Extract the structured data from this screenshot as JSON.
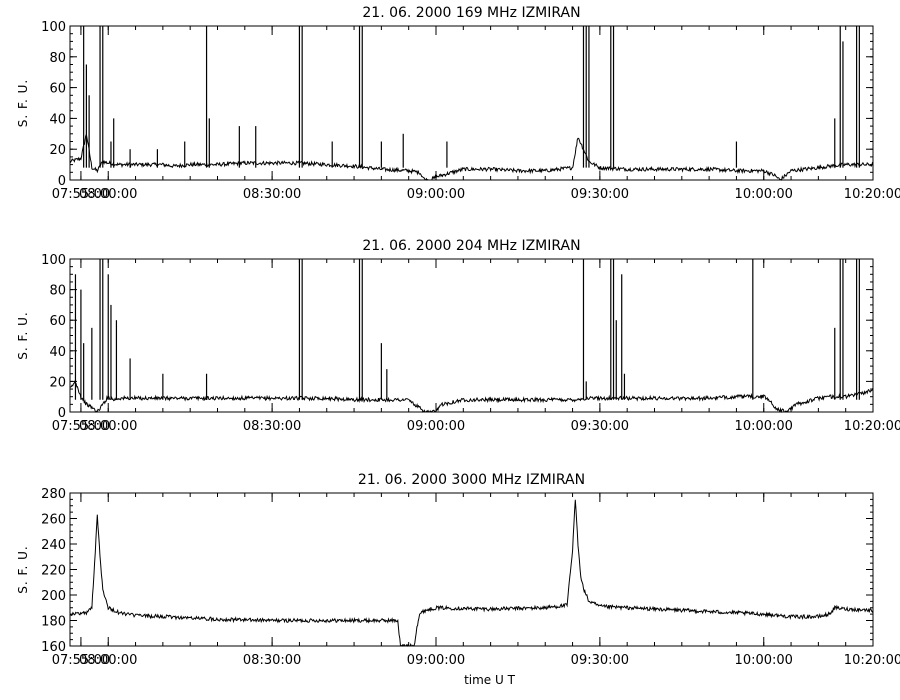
{
  "chart_data": [
    {
      "type": "line",
      "title": "21.  06.  2000    169  MHz     IZMIRAN",
      "ylabel": "S.  F.  U.",
      "xlabel": "",
      "xlim": [
        "07:53:00",
        "10:20:00"
      ],
      "ylim": [
        0,
        100
      ],
      "yticks": [
        0,
        20,
        40,
        60,
        80,
        100
      ],
      "xticks": [
        {
          "t": "07:55:00",
          "label": "07:55:00"
        },
        {
          "t": "08:00:00",
          "label": "08:00:00"
        },
        {
          "t": "08:30:00",
          "label": "08:30:00"
        },
        {
          "t": "09:00:00",
          "label": "09:00:00"
        },
        {
          "t": "09:30:00",
          "label": "09:30:00"
        },
        {
          "t": "10:00:00",
          "label": "10:00:00"
        },
        {
          "t": "10:20:00",
          "label": "10:20:00"
        }
      ],
      "grid": false,
      "series": [
        {
          "color": "#000000",
          "x": [
            "07:53:00",
            "07:55:00",
            "07:56:00",
            "07:57:00",
            "07:58:00",
            "07:59:00",
            "08:00:00",
            "08:02:00",
            "08:05:00",
            "08:10:00",
            "08:12:00",
            "08:15:00",
            "08:20:00",
            "08:25:00",
            "08:30:00",
            "08:35:00",
            "08:40:00",
            "08:45:00",
            "08:50:00",
            "08:55:00",
            "08:57:00",
            "08:58:00",
            "08:59:00",
            "09:00:00",
            "09:05:00",
            "09:10:00",
            "09:15:00",
            "09:20:00",
            "09:25:00",
            "09:26:00",
            "09:28:00",
            "09:30:00",
            "09:35:00",
            "09:40:00",
            "09:45:00",
            "09:50:00",
            "09:55:00",
            "10:00:00",
            "10:02:00",
            "10:03:00",
            "10:05:00",
            "10:10:00",
            "10:12:00",
            "10:15:00",
            "10:20:00"
          ],
          "y": [
            12,
            14,
            30,
            8,
            6,
            12,
            11,
            10,
            10,
            10,
            9,
            10,
            10,
            11,
            11,
            11,
            10,
            9,
            7,
            6,
            5,
            0,
            0,
            2,
            7,
            7,
            6,
            6,
            8,
            28,
            12,
            8,
            7,
            7,
            7,
            7,
            6,
            6,
            3,
            0,
            6,
            8,
            9,
            10,
            10
          ]
        }
      ],
      "spikes": [
        {
          "t": "07:55:30",
          "y": 100
        },
        {
          "t": "07:56:00",
          "y": 75
        },
        {
          "t": "07:56:30",
          "y": 55
        },
        {
          "t": "07:58:30",
          "y": 100
        },
        {
          "t": "07:59:00",
          "y": 100
        },
        {
          "t": "08:00:30",
          "y": 25
        },
        {
          "t": "08:01:00",
          "y": 40
        },
        {
          "t": "08:04:00",
          "y": 20
        },
        {
          "t": "08:09:00",
          "y": 20
        },
        {
          "t": "08:14:00",
          "y": 25
        },
        {
          "t": "08:18:00",
          "y": 100
        },
        {
          "t": "08:18:30",
          "y": 40
        },
        {
          "t": "08:24:00",
          "y": 35
        },
        {
          "t": "08:27:00",
          "y": 35
        },
        {
          "t": "08:35:00",
          "y": 100
        },
        {
          "t": "08:35:30",
          "y": 100
        },
        {
          "t": "08:41:00",
          "y": 25
        },
        {
          "t": "08:46:00",
          "y": 100
        },
        {
          "t": "08:46:30",
          "y": 100
        },
        {
          "t": "08:50:00",
          "y": 25
        },
        {
          "t": "08:54:00",
          "y": 30
        },
        {
          "t": "09:02:00",
          "y": 25
        },
        {
          "t": "09:27:00",
          "y": 100
        },
        {
          "t": "09:27:30",
          "y": 100
        },
        {
          "t": "09:28:00",
          "y": 100
        },
        {
          "t": "09:32:00",
          "y": 100
        },
        {
          "t": "09:32:30",
          "y": 100
        },
        {
          "t": "09:55:00",
          "y": 25
        },
        {
          "t": "10:13:00",
          "y": 40
        },
        {
          "t": "10:14:00",
          "y": 100
        },
        {
          "t": "10:14:30",
          "y": 90
        },
        {
          "t": "10:17:00",
          "y": 100
        },
        {
          "t": "10:17:30",
          "y": 100
        }
      ]
    },
    {
      "type": "line",
      "title": "21.  06.  2000    204  MHz     IZMIRAN",
      "ylabel": "S.  F.  U.",
      "xlabel": "",
      "xlim": [
        "07:53:00",
        "10:20:00"
      ],
      "ylim": [
        0,
        100
      ],
      "yticks": [
        0,
        20,
        40,
        60,
        80,
        100
      ],
      "xticks": [
        {
          "t": "07:55:00",
          "label": "07:55:00"
        },
        {
          "t": "08:00:00",
          "label": "08:00:00"
        },
        {
          "t": "08:30:00",
          "label": "08:30:00"
        },
        {
          "t": "09:00:00",
          "label": "09:00:00"
        },
        {
          "t": "09:30:00",
          "label": "09:30:00"
        },
        {
          "t": "10:00:00",
          "label": "10:00:00"
        },
        {
          "t": "10:20:00",
          "label": "10:20:00"
        }
      ],
      "grid": false,
      "series": [
        {
          "color": "#000000",
          "x": [
            "07:53:00",
            "07:54:00",
            "07:55:00",
            "07:56:00",
            "07:57:00",
            "07:58:00",
            "07:59:00",
            "08:00:00",
            "08:01:00",
            "08:02:00",
            "08:05:00",
            "08:10:00",
            "08:15:00",
            "08:20:00",
            "08:25:00",
            "08:30:00",
            "08:35:00",
            "08:40:00",
            "08:45:00",
            "08:50:00",
            "08:55:00",
            "08:56:00",
            "08:58:00",
            "09:00:00",
            "09:01:00",
            "09:05:00",
            "09:10:00",
            "09:15:00",
            "09:20:00",
            "09:25:00",
            "09:28:00",
            "09:30:00",
            "09:35:00",
            "09:40:00",
            "09:45:00",
            "09:50:00",
            "09:55:00",
            "10:00:00",
            "10:01:00",
            "10:02:00",
            "10:04:00",
            "10:06:00",
            "10:10:00",
            "10:12:00",
            "10:15:00",
            "10:20:00"
          ],
          "y": [
            15,
            20,
            10,
            5,
            3,
            0,
            5,
            10,
            8,
            9,
            9,
            9,
            9,
            9,
            9,
            9,
            9,
            9,
            8,
            8,
            8,
            5,
            0,
            0,
            5,
            8,
            8,
            8,
            8,
            8,
            9,
            9,
            9,
            9,
            9,
            9,
            10,
            10,
            8,
            3,
            0,
            5,
            9,
            10,
            10,
            14
          ]
        }
      ],
      "spikes": [
        {
          "t": "07:54:00",
          "y": 90
        },
        {
          "t": "07:55:00",
          "y": 80
        },
        {
          "t": "07:55:30",
          "y": 45
        },
        {
          "t": "07:57:00",
          "y": 55
        },
        {
          "t": "07:58:30",
          "y": 100
        },
        {
          "t": "07:59:00",
          "y": 100
        },
        {
          "t": "08:00:00",
          "y": 90
        },
        {
          "t": "08:00:30",
          "y": 70
        },
        {
          "t": "08:01:30",
          "y": 60
        },
        {
          "t": "08:04:00",
          "y": 35
        },
        {
          "t": "08:10:00",
          "y": 25
        },
        {
          "t": "08:18:00",
          "y": 25
        },
        {
          "t": "08:35:00",
          "y": 100
        },
        {
          "t": "08:35:30",
          "y": 100
        },
        {
          "t": "08:46:00",
          "y": 100
        },
        {
          "t": "08:46:30",
          "y": 100
        },
        {
          "t": "08:50:00",
          "y": 45
        },
        {
          "t": "08:51:00",
          "y": 28
        },
        {
          "t": "09:27:00",
          "y": 100
        },
        {
          "t": "09:27:30",
          "y": 20
        },
        {
          "t": "09:32:00",
          "y": 100
        },
        {
          "t": "09:32:30",
          "y": 100
        },
        {
          "t": "09:33:00",
          "y": 60
        },
        {
          "t": "09:34:00",
          "y": 90
        },
        {
          "t": "09:34:30",
          "y": 25
        },
        {
          "t": "09:58:00",
          "y": 100
        },
        {
          "t": "10:13:00",
          "y": 55
        },
        {
          "t": "10:14:00",
          "y": 100
        },
        {
          "t": "10:14:30",
          "y": 100
        },
        {
          "t": "10:17:00",
          "y": 100
        },
        {
          "t": "10:17:30",
          "y": 100
        }
      ]
    },
    {
      "type": "line",
      "title": "21.  06.  2000    3000  MHz     IZMIRAN",
      "ylabel": "S.  F.  U.",
      "xlabel": "time    U  T",
      "xlim": [
        "07:53:00",
        "10:20:00"
      ],
      "ylim": [
        160,
        280
      ],
      "yticks": [
        160,
        180,
        200,
        220,
        240,
        260,
        280
      ],
      "xticks": [
        {
          "t": "07:55:00",
          "label": "07:55:00"
        },
        {
          "t": "08:00:00",
          "label": "08:00:00"
        },
        {
          "t": "08:30:00",
          "label": "08:30:00"
        },
        {
          "t": "09:00:00",
          "label": "09:00:00"
        },
        {
          "t": "09:30:00",
          "label": "09:30:00"
        },
        {
          "t": "10:00:00",
          "label": "10:00:00"
        },
        {
          "t": "10:20:00",
          "label": "10:20:00"
        }
      ],
      "grid": false,
      "series": [
        {
          "color": "#000000",
          "x": [
            "07:53:00",
            "07:56:00",
            "07:57:00",
            "07:57:30",
            "07:58:00",
            "07:58:30",
            "07:59:00",
            "08:00:00",
            "08:02:00",
            "08:05:00",
            "08:10:00",
            "08:20:00",
            "08:30:00",
            "08:40:00",
            "08:50:00",
            "08:53:00",
            "08:53:30",
            "08:55:00",
            "08:56:00",
            "08:56:30",
            "08:57:00",
            "08:58:00",
            "09:00:00",
            "09:10:00",
            "09:20:00",
            "09:24:00",
            "09:25:00",
            "09:25:30",
            "09:26:00",
            "09:26:30",
            "09:27:00",
            "09:28:00",
            "09:30:00",
            "09:40:00",
            "09:50:00",
            "10:00:00",
            "10:05:00",
            "10:10:00",
            "10:12:00",
            "10:13:00",
            "10:15:00",
            "10:20:00"
          ],
          "y": [
            185,
            186,
            190,
            225,
            263,
            230,
            205,
            190,
            186,
            184,
            183,
            181,
            180,
            180,
            180,
            180,
            160,
            160,
            160,
            175,
            185,
            188,
            190,
            189,
            190,
            192,
            235,
            275,
            240,
            215,
            205,
            195,
            191,
            189,
            187,
            185,
            183,
            183,
            185,
            190,
            189,
            188
          ]
        }
      ],
      "spikes": []
    }
  ]
}
